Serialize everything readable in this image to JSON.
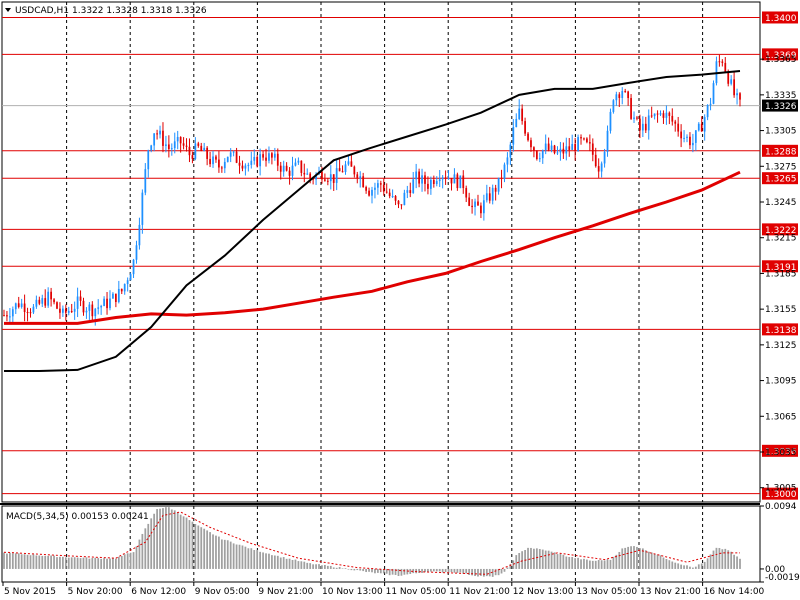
{
  "header": {
    "symbol": "USDCAD,H1",
    "ohlc": "1.3322 1.3328 1.3318 1.3326"
  },
  "macd_header": {
    "title": "MACD(5,34,5) 0.00153 0.00241"
  },
  "colors": {
    "bull_candle": "#1e90ff",
    "bear_candle": "#e00000",
    "level_line": "#e00000",
    "ma_fast": "#000000",
    "ma_slow": "#e00000",
    "macd_hist": "#a0a0a0",
    "macd_signal": "#e00000",
    "price_tag_bg": "#e00000",
    "current_tag_bg": "#000000"
  },
  "chart_data": [
    {
      "type": "candlestick",
      "title": "USDCAD,H1",
      "ylim": [
        1.2993,
        1.3413
      ],
      "y_ticks": [
        "1.3365",
        "1.3335",
        "1.3305",
        "1.3275",
        "1.3245",
        "1.3215",
        "1.3185",
        "1.3155",
        "1.3125",
        "1.3095",
        "1.3065",
        "1.3035",
        "1.3005"
      ],
      "x_ticks": [
        "5 Nov 2015",
        "5 Nov 20:00",
        "6 Nov 12:00",
        "9 Nov 05:00",
        "9 Nov 21:00",
        "10 Nov 13:00",
        "11 Nov 05:00",
        "11 Nov 21:00",
        "12 Nov 13:00",
        "13 Nov 05:00",
        "13 Nov 21:00",
        "16 Nov 14:00"
      ],
      "levels": [
        "1.3400",
        "1.3369",
        "1.3288",
        "1.3265",
        "1.3222",
        "1.3191",
        "1.3138",
        "1.3036",
        "1.3000"
      ],
      "current_price": "1.3326",
      "current_value": 1.3326,
      "close_path": [
        [
          0,
          1.315
        ],
        [
          5,
          1.316
        ],
        [
          10,
          1.3155
        ],
        [
          15,
          1.3165
        ],
        [
          20,
          1.315
        ],
        [
          25,
          1.316
        ],
        [
          30,
          1.3155
        ],
        [
          35,
          1.316
        ],
        [
          40,
          1.317
        ],
        [
          44,
          1.3195
        ],
        [
          47,
          1.325
        ],
        [
          49,
          1.329
        ],
        [
          51,
          1.3305
        ],
        [
          53,
          1.33
        ],
        [
          56,
          1.329
        ],
        [
          60,
          1.3295
        ],
        [
          63,
          1.3285
        ],
        [
          66,
          1.329
        ],
        [
          70,
          1.328
        ],
        [
          73,
          1.3275
        ],
        [
          76,
          1.3285
        ],
        [
          80,
          1.328
        ],
        [
          84,
          1.3275
        ],
        [
          88,
          1.3285
        ],
        [
          92,
          1.328
        ],
        [
          96,
          1.327
        ],
        [
          100,
          1.3275
        ],
        [
          104,
          1.3265
        ],
        [
          108,
          1.327
        ],
        [
          112,
          1.3265
        ],
        [
          116,
          1.3275
        ],
        [
          120,
          1.327
        ],
        [
          124,
          1.3255
        ],
        [
          128,
          1.326
        ],
        [
          131,
          1.325
        ],
        [
          134,
          1.324
        ],
        [
          137,
          1.3255
        ],
        [
          140,
          1.3265
        ],
        [
          144,
          1.326
        ],
        [
          148,
          1.327
        ],
        [
          152,
          1.3265
        ],
        [
          156,
          1.326
        ],
        [
          159,
          1.324
        ],
        [
          162,
          1.324
        ],
        [
          165,
          1.325
        ],
        [
          168,
          1.326
        ],
        [
          171,
          1.328
        ],
        [
          173,
          1.3305
        ],
        [
          175,
          1.332
        ],
        [
          178,
          1.33
        ],
        [
          181,
          1.3285
        ],
        [
          184,
          1.329
        ],
        [
          188,
          1.3285
        ],
        [
          192,
          1.329
        ],
        [
          196,
          1.3295
        ],
        [
          199,
          1.329
        ],
        [
          202,
          1.3275
        ],
        [
          205,
          1.33
        ],
        [
          207,
          1.3335
        ],
        [
          210,
          1.334
        ],
        [
          213,
          1.332
        ],
        [
          216,
          1.3305
        ],
        [
          220,
          1.3315
        ],
        [
          224,
          1.332
        ],
        [
          228,
          1.331
        ],
        [
          231,
          1.33
        ],
        [
          234,
          1.3295
        ],
        [
          237,
          1.331
        ],
        [
          240,
          1.333
        ],
        [
          242,
          1.336
        ],
        [
          244,
          1.3365
        ],
        [
          246,
          1.335
        ],
        [
          248,
          1.3335
        ],
        [
          250,
          1.3326
        ]
      ],
      "ma_fast": [
        [
          0,
          1.3103
        ],
        [
          12,
          1.3103
        ],
        [
          25,
          1.3104
        ],
        [
          38,
          1.3115
        ],
        [
          50,
          1.314
        ],
        [
          62,
          1.3175
        ],
        [
          75,
          1.32
        ],
        [
          88,
          1.323
        ],
        [
          100,
          1.3255
        ],
        [
          112,
          1.328
        ],
        [
          124,
          1.329
        ],
        [
          137,
          1.33
        ],
        [
          150,
          1.331
        ],
        [
          162,
          1.332
        ],
        [
          175,
          1.3335
        ],
        [
          187,
          1.334
        ],
        [
          200,
          1.334
        ],
        [
          212,
          1.3345
        ],
        [
          225,
          1.335
        ],
        [
          237,
          1.3352
        ],
        [
          250,
          1.3355
        ]
      ],
      "ma_slow": [
        [
          0,
          1.3143
        ],
        [
          25,
          1.3143
        ],
        [
          38,
          1.3148
        ],
        [
          50,
          1.3151
        ],
        [
          62,
          1.315
        ],
        [
          75,
          1.3152
        ],
        [
          88,
          1.3155
        ],
        [
          100,
          1.316
        ],
        [
          112,
          1.3165
        ],
        [
          125,
          1.317
        ],
        [
          137,
          1.3178
        ],
        [
          150,
          1.3185
        ],
        [
          162,
          1.3195
        ],
        [
          175,
          1.3205
        ],
        [
          187,
          1.3215
        ],
        [
          200,
          1.3225
        ],
        [
          212,
          1.3235
        ],
        [
          225,
          1.3245
        ],
        [
          237,
          1.3255
        ],
        [
          250,
          1.327
        ]
      ]
    },
    {
      "type": "macd",
      "title": "MACD(5,34,5)",
      "ylim": [
        -0.00195,
        0.0094
      ],
      "y_ticks": [
        "0.0094",
        "0.00",
        "-0.00195"
      ],
      "histogram_path": [
        [
          0,
          0.0024
        ],
        [
          10,
          0.0021
        ],
        [
          20,
          0.0018
        ],
        [
          30,
          0.0016
        ],
        [
          38,
          0.0016
        ],
        [
          44,
          0.0026
        ],
        [
          48,
          0.006
        ],
        [
          52,
          0.009
        ],
        [
          56,
          0.0092
        ],
        [
          60,
          0.0082
        ],
        [
          66,
          0.0064
        ],
        [
          74,
          0.0045
        ],
        [
          84,
          0.003
        ],
        [
          94,
          0.0018
        ],
        [
          104,
          0.0008
        ],
        [
          114,
          0.0002
        ],
        [
          124,
          -0.0005
        ],
        [
          134,
          -0.001
        ],
        [
          144,
          -0.0004
        ],
        [
          154,
          -0.0005
        ],
        [
          160,
          -0.001
        ],
        [
          166,
          -0.0012
        ],
        [
          170,
          -0.0005
        ],
        [
          174,
          0.002
        ],
        [
          178,
          0.0032
        ],
        [
          184,
          0.0028
        ],
        [
          192,
          0.0018
        ],
        [
          200,
          0.0012
        ],
        [
          206,
          0.0014
        ],
        [
          210,
          0.003
        ],
        [
          214,
          0.0035
        ],
        [
          220,
          0.0025
        ],
        [
          228,
          0.001
        ],
        [
          234,
          0.0002
        ],
        [
          238,
          0.001
        ],
        [
          242,
          0.0032
        ],
        [
          246,
          0.0028
        ],
        [
          250,
          0.0015
        ]
      ],
      "signal_path": [
        [
          0,
          0.0025
        ],
        [
          20,
          0.002
        ],
        [
          38,
          0.0016
        ],
        [
          48,
          0.004
        ],
        [
          54,
          0.008
        ],
        [
          60,
          0.0085
        ],
        [
          70,
          0.0062
        ],
        [
          84,
          0.0038
        ],
        [
          100,
          0.0016
        ],
        [
          120,
          0.0002
        ],
        [
          140,
          -0.0004
        ],
        [
          164,
          -0.0008
        ],
        [
          176,
          0.0012
        ],
        [
          188,
          0.0024
        ],
        [
          204,
          0.0014
        ],
        [
          216,
          0.0028
        ],
        [
          232,
          0.001
        ],
        [
          244,
          0.0024
        ],
        [
          250,
          0.0024
        ]
      ]
    }
  ]
}
